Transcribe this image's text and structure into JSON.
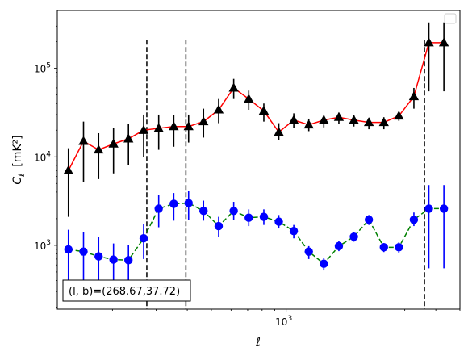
{
  "chart_data": {
    "type": "line",
    "xscale": "log",
    "yscale": "log",
    "xlim": [
      120,
      5000
    ],
    "ylim": [
      190,
      450000
    ],
    "xlabel": "ℓ",
    "ylabel_main": "C",
    "ylabel_sub": "ℓ",
    "ylabel_unit": "[mK²]",
    "x_ticks": [
      {
        "value": 1000,
        "base": "10",
        "exp": "3"
      }
    ],
    "y_ticks": [
      {
        "value": 1000,
        "base": "10",
        "exp": "3"
      },
      {
        "value": 10000,
        "base": "10",
        "exp": "4"
      },
      {
        "value": 100000,
        "base": "10",
        "exp": "5"
      }
    ],
    "annotation": "(l, b)=(268.67,37.72)",
    "legend": {
      "location": "top-right",
      "entries": []
    },
    "vlines": [
      {
        "x": 275,
        "color": "#000000",
        "style": "dashed"
      },
      {
        "x": 395,
        "color": "#000000",
        "style": "dashed"
      },
      {
        "x": 3600,
        "color": "#000000",
        "style": "dashed"
      }
    ],
    "series": [
      {
        "marker": "triangle",
        "line_color": "#ff0000",
        "marker_color": "#000000",
        "err_color": "#000000",
        "line_style": "solid",
        "x": [
          133,
          153,
          176,
          202,
          232,
          267,
          307,
          353,
          405,
          465,
          535,
          615,
          707,
          813,
          934,
          1073,
          1233,
          1417,
          1629,
          1872,
          2151,
          2472,
          2840,
          3264,
          3750,
          4310
        ],
        "y": [
          7000,
          15000,
          12000,
          14000,
          16000,
          20000,
          21000,
          22000,
          22000,
          25000,
          34000,
          60000,
          45000,
          33000,
          19000,
          26000,
          23000,
          26000,
          28000,
          26000,
          24500,
          24500,
          29000,
          48000,
          195000,
          195000
        ],
        "err_low": [
          2100,
          5200,
          5600,
          6500,
          8000,
          10000,
          12000,
          13000,
          14500,
          16500,
          24000,
          45000,
          34000,
          25000,
          15500,
          21000,
          19500,
          21500,
          23500,
          22000,
          20500,
          20500,
          25500,
          35000,
          55000,
          55000
        ],
        "err_high": [
          12500,
          25000,
          18500,
          21000,
          23500,
          30000,
          30000,
          29500,
          30000,
          35000,
          45000,
          76000,
          56000,
          40000,
          24000,
          31000,
          27000,
          30000,
          31500,
          29500,
          27500,
          28000,
          31000,
          60000,
          330000,
          330000
        ]
      },
      {
        "marker": "circle",
        "line_color": "#008000",
        "marker_color": "#0000ff",
        "err_color": "#0000ff",
        "line_style": "dashed",
        "x": [
          133,
          153,
          176,
          202,
          232,
          267,
          307,
          353,
          405,
          465,
          535,
          615,
          707,
          813,
          934,
          1073,
          1233,
          1417,
          1629,
          1872,
          2151,
          2472,
          2840,
          3264,
          3750,
          4310
        ],
        "y": [
          900,
          850,
          750,
          690,
          680,
          1200,
          2600,
          2950,
          3000,
          2450,
          1650,
          2450,
          2050,
          2100,
          1850,
          1450,
          850,
          620,
          980,
          1250,
          1950,
          950,
          950,
          1950,
          2600,
          2600
        ],
        "err_low": [
          350,
          350,
          300,
          270,
          280,
          700,
          1600,
          1900,
          1950,
          1900,
          1250,
          1950,
          1650,
          1700,
          1550,
          1200,
          700,
          520,
          860,
          1100,
          1700,
          840,
          820,
          1650,
          550,
          550
        ],
        "err_high": [
          1500,
          1400,
          1250,
          1050,
          1000,
          1750,
          3700,
          3900,
          4100,
          3200,
          2100,
          3100,
          2550,
          2550,
          2200,
          1700,
          980,
          720,
          1120,
          1420,
          2200,
          1060,
          1080,
          2350,
          4800,
          4800
        ]
      }
    ]
  }
}
